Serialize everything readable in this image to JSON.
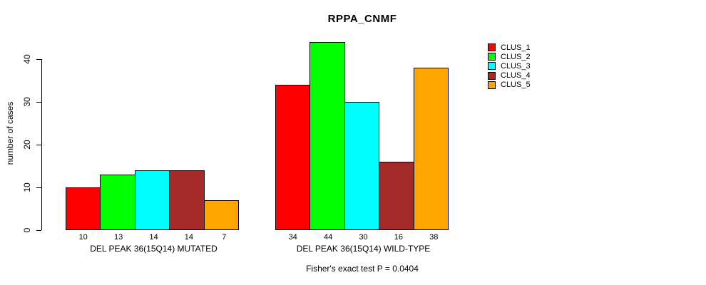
{
  "chart_data": {
    "type": "bar",
    "title": "RPPA_CNMF",
    "ylabel": "number of cases",
    "xlabel": "",
    "categories": [
      "DEL PEAK 36(15Q14) MUTATED",
      "DEL PEAK 36(15Q14) WILD-TYPE"
    ],
    "series": [
      {
        "name": "CLUS_1",
        "color": "#FF0000",
        "values": [
          10,
          34
        ]
      },
      {
        "name": "CLUS_2",
        "color": "#00FF00",
        "values": [
          13,
          44
        ]
      },
      {
        "name": "CLUS_3",
        "color": "#00FFFF",
        "values": [
          14,
          30
        ]
      },
      {
        "name": "CLUS_4",
        "color": "#A52A2A",
        "values": [
          14,
          16
        ]
      },
      {
        "name": "CLUS_5",
        "color": "#FFA500",
        "values": [
          7,
          38
        ]
      }
    ],
    "yticks": [
      0,
      10,
      20,
      30,
      40
    ],
    "ylim": [
      0,
      44
    ],
    "grid": false,
    "bar_value_labels": true,
    "legend_position": "top-right",
    "annotation": "Fisher's exact test P = 0.0404"
  }
}
